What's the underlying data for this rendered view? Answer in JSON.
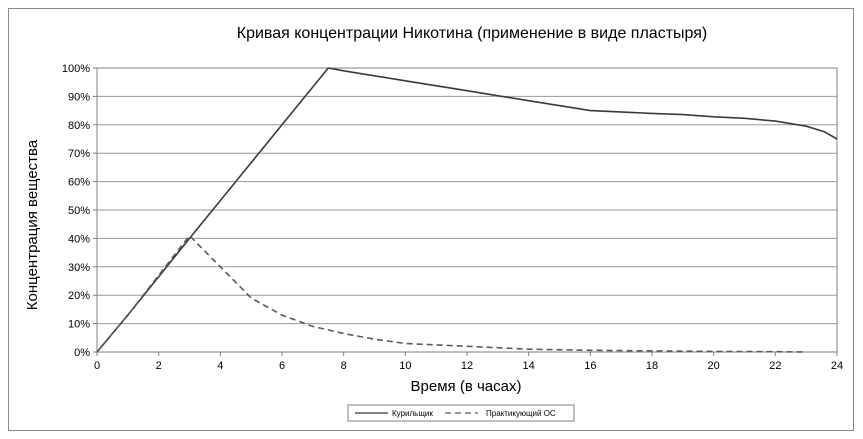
{
  "chart_data": {
    "type": "line",
    "title": "Кривая концентрации Никотина (применение в виде пластыря)",
    "xlabel": "Время (в часах)",
    "ylabel": "Концентрация вещества",
    "xlim": [
      0,
      24
    ],
    "ylim": [
      0,
      100
    ],
    "x_ticks": [
      0,
      2,
      4,
      6,
      8,
      10,
      12,
      14,
      16,
      18,
      20,
      22,
      24
    ],
    "y_ticks": [
      0,
      10,
      20,
      30,
      40,
      50,
      60,
      70,
      80,
      90,
      100
    ],
    "y_tick_labels": [
      "0%",
      "10%",
      "20%",
      "30%",
      "40%",
      "50%",
      "60%",
      "70%",
      "80%",
      "90%",
      "100%"
    ],
    "grid": "horizontal",
    "legend_position": "bottom",
    "series": [
      {
        "name": "Курильщик",
        "style": "solid",
        "color": "#3a3a3a",
        "points": [
          [
            0,
            0
          ],
          [
            1,
            13
          ],
          [
            2,
            26.5
          ],
          [
            3,
            40
          ],
          [
            4,
            53.3
          ],
          [
            5,
            66.7
          ],
          [
            6,
            80
          ],
          [
            7,
            93.3
          ],
          [
            7.5,
            100
          ],
          [
            8,
            99
          ],
          [
            10,
            95.5
          ],
          [
            12,
            92
          ],
          [
            14,
            88.5
          ],
          [
            16,
            85
          ],
          [
            18,
            84
          ],
          [
            19,
            83.6
          ],
          [
            20,
            82.8
          ],
          [
            21,
            82.3
          ],
          [
            22,
            81.3
          ],
          [
            23,
            79.5
          ],
          [
            23.6,
            77.5
          ],
          [
            24,
            75
          ]
        ]
      },
      {
        "name": "Практикующий ОС",
        "style": "dashed",
        "color": "#5a5a5a",
        "points": [
          [
            0,
            0
          ],
          [
            1,
            13
          ],
          [
            2,
            27
          ],
          [
            3,
            41
          ],
          [
            4,
            30
          ],
          [
            5,
            19
          ],
          [
            6,
            13
          ],
          [
            7,
            9
          ],
          [
            8,
            6.5
          ],
          [
            9,
            4.5
          ],
          [
            10,
            3
          ],
          [
            12,
            2
          ],
          [
            14,
            1
          ],
          [
            16,
            0.6
          ],
          [
            18,
            0.4
          ],
          [
            20,
            0.2
          ],
          [
            22,
            0.1
          ],
          [
            23,
            0
          ]
        ]
      }
    ]
  }
}
